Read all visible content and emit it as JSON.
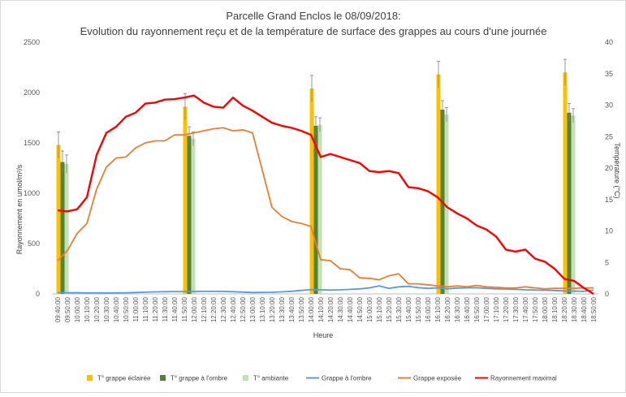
{
  "chart_data": {
    "type": "bar+line (dual axis)",
    "title": "Parcelle Grand Enclos le 08/09/2018:",
    "subtitle": "Evolution du rayonnement reçu et de la température de surface des grappes au cours d'une journée",
    "xlabel": "Heure",
    "ylabel_left": "Rayonnement en umol/m²/s",
    "ylabel_right": "Température (°C)",
    "y_left_lim": [
      0,
      2500
    ],
    "y_left_ticks": [
      "0",
      "500",
      "1000",
      "1500",
      "2000",
      "2500"
    ],
    "y_right_lim": [
      0,
      40
    ],
    "y_right_ticks": [
      "0",
      "5",
      "10",
      "15",
      "20",
      "25",
      "30",
      "35",
      "40"
    ],
    "grid": false,
    "legend_position": "bottom",
    "x_categories": [
      "09:40:00",
      "09:50:00",
      "10:00:00",
      "10:10:00",
      "10:20:00",
      "10:30:00",
      "10:40:00",
      "10:50:00",
      "11:00:00",
      "11:10:00",
      "11:20:00",
      "11:30:00",
      "11:40:00",
      "11:50:00",
      "12:00:00",
      "12:10:00",
      "12:20:00",
      "12:30:00",
      "12:40:00",
      "12:50:00",
      "13:00:00",
      "13:10:00",
      "13:20:00",
      "13:30:00",
      "13:40:00",
      "13:50:00",
      "14:00:00",
      "14:10:00",
      "14:20:00",
      "14:30:00",
      "14:40:00",
      "14:50:00",
      "15:00:00",
      "15:10:00",
      "15:20:00",
      "15:30:00",
      "15:40:00",
      "15:50:00",
      "16:00:00",
      "16:10:00",
      "16:20:00",
      "16:30:00",
      "16:40:00",
      "16:50:00",
      "17:00:00",
      "17:10:00",
      "17:20:00",
      "17:30:00",
      "17:40:00",
      "17:50:00",
      "18:00:00",
      "18:10:00",
      "18:20:00",
      "18:30:00",
      "18:40:00",
      "18:50:00"
    ],
    "bar_groups": [
      {
        "label_index": 0.5,
        "eclairee": 1480,
        "ombre": 1310,
        "ambiante": 1290,
        "err_eclairee": 130,
        "err_ombre": 110,
        "err_ambiante": 90
      },
      {
        "label_index": 13.5,
        "eclairee": 1860,
        "ombre": 1570,
        "ambiante": 1540,
        "err_eclairee": 130,
        "err_ombre": 90,
        "err_ambiante": 70
      },
      {
        "label_index": 26.5,
        "eclairee": 2040,
        "ombre": 1670,
        "ambiante": 1680,
        "err_eclairee": 130,
        "err_ombre": 90,
        "err_ambiante": 70
      },
      {
        "label_index": 39.5,
        "eclairee": 2180,
        "ombre": 1830,
        "ambiante": 1780,
        "err_eclairee": 130,
        "err_ombre": 90,
        "err_ambiante": 70
      },
      {
        "label_index": 52.5,
        "eclairee": 2200,
        "ombre": 1800,
        "ambiante": 1770,
        "err_eclairee": 130,
        "err_ombre": 90,
        "err_ambiante": 70
      }
    ],
    "series": [
      {
        "name": "T° grappe éclairée",
        "kind": "bar",
        "color": "#FFC000"
      },
      {
        "name": "T° grappe à l'ombre",
        "kind": "bar",
        "color": "#548235"
      },
      {
        "name": "T° ambiante",
        "kind": "bar",
        "color": "#C5E0B4"
      },
      {
        "name": "Grappe à l'ombre",
        "kind": "line",
        "color": "#5B9BD5",
        "values": [
          12,
          11,
          12,
          10,
          10,
          10,
          10,
          11,
          14,
          17,
          20,
          22,
          23,
          23,
          24,
          25,
          25,
          24,
          22,
          18,
          14,
          15,
          16,
          20,
          26,
          35,
          42,
          40,
          38,
          40,
          45,
          50,
          60,
          80,
          55,
          70,
          75,
          62,
          55,
          60,
          50,
          58,
          60,
          62,
          55,
          50,
          48,
          45,
          40,
          38,
          36,
          34,
          30,
          28,
          25,
          38
        ]
      },
      {
        "name": "Grappe exposée",
        "kind": "line",
        "color": "#ED7D31",
        "values": [
          330,
          430,
          600,
          700,
          1040,
          1260,
          1350,
          1360,
          1450,
          1500,
          1520,
          1520,
          1580,
          1580,
          1600,
          1620,
          1640,
          1650,
          1620,
          1630,
          1600,
          1230,
          860,
          770,
          720,
          700,
          670,
          340,
          330,
          250,
          240,
          160,
          155,
          140,
          180,
          200,
          100,
          100,
          90,
          80,
          70,
          80,
          70,
          85,
          70,
          65,
          60,
          60,
          70,
          60,
          50,
          55,
          55,
          55,
          60,
          60
        ]
      },
      {
        "name": "Rayonnement maximal",
        "kind": "line",
        "color": "#FF0000",
        "values": [
          830,
          820,
          840,
          960,
          1380,
          1600,
          1660,
          1760,
          1800,
          1890,
          1900,
          1930,
          1935,
          1950,
          1970,
          1900,
          1860,
          1850,
          1950,
          1870,
          1820,
          1760,
          1700,
          1670,
          1650,
          1620,
          1580,
          1360,
          1390,
          1360,
          1330,
          1300,
          1220,
          1210,
          1220,
          1200,
          1060,
          1050,
          1020,
          960,
          860,
          800,
          750,
          680,
          640,
          570,
          440,
          420,
          440,
          350,
          320,
          250,
          150,
          130,
          60,
          0
        ]
      }
    ]
  }
}
